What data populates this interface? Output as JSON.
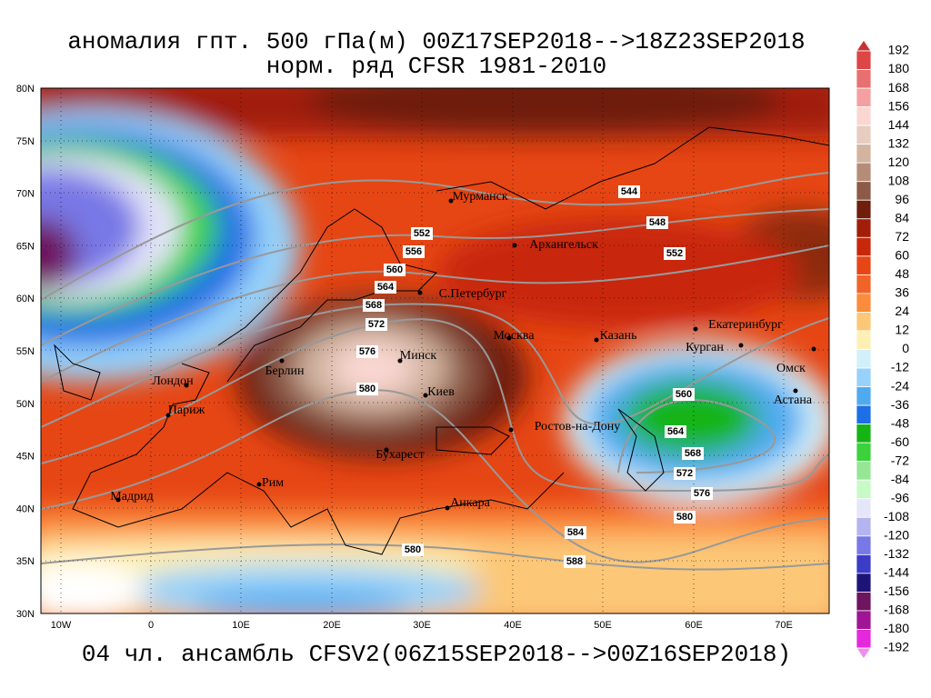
{
  "header": {
    "title": "аномалия гпт. 500 гПа(м) 00Z17SEP2018-->18Z23SEP2018",
    "subtitle": "норм. ряд CFSR 1981-2010"
  },
  "caption": "04 чл. ансамбль CFSV2(06Z15SEP2018-->00Z16SEP2018)",
  "map": {
    "lat_labels": [
      "80N",
      "75N",
      "70N",
      "65N",
      "60N",
      "55N",
      "50N",
      "45N",
      "40N",
      "35N",
      "30N"
    ],
    "lon_labels": [
      "10W",
      "0",
      "10E",
      "20E",
      "30E",
      "40E",
      "50E",
      "60E",
      "70E"
    ],
    "cities": [
      "Мурманск",
      "Архангельск",
      "С.Петербург",
      "Москва",
      "Казань",
      "Екатеринбург",
      "Курган",
      "Омск",
      "Астана",
      "Минск",
      "Берлин",
      "Лондон",
      "Париж",
      "Киев",
      "Ростов-на-Дону",
      "Бухарест",
      "Рим",
      "Мадрид",
      "Анкара"
    ],
    "contour_labels": [
      544,
      548,
      552,
      552,
      556,
      560,
      564,
      568,
      572,
      576,
      580,
      560,
      564,
      568,
      572,
      576,
      580,
      584,
      588,
      580
    ]
  },
  "colorbar": {
    "labels": [
      192,
      180,
      168,
      156,
      144,
      132,
      120,
      108,
      96,
      84,
      72,
      60,
      48,
      36,
      24,
      12,
      0,
      -12,
      -24,
      -36,
      -48,
      -60,
      -72,
      -84,
      -96,
      -108,
      -120,
      -132,
      -144,
      -156,
      -168,
      -180,
      -192
    ],
    "colors": [
      "#c83232",
      "#dc4646",
      "#e87070",
      "#f4a0a0",
      "#fad7d2",
      "#e6cdc0",
      "#d2b4a0",
      "#b48c78",
      "#8c5a46",
      "#6e1e0a",
      "#a01e0a",
      "#c8280a",
      "#e64614",
      "#f06428",
      "#fa8c3c",
      "#fcc878",
      "#fef0b4",
      "#d2f0fa",
      "#96d2fa",
      "#50aaf0",
      "#1e6ee6",
      "#14b414",
      "#3cd23c",
      "#96e696",
      "#c8fac8",
      "#e6e6fa",
      "#b4b4f0",
      "#7878e6",
      "#3c3cc8",
      "#1e1478",
      "#6e1460",
      "#a01496",
      "#e628dc",
      "#f08ced"
    ]
  }
}
